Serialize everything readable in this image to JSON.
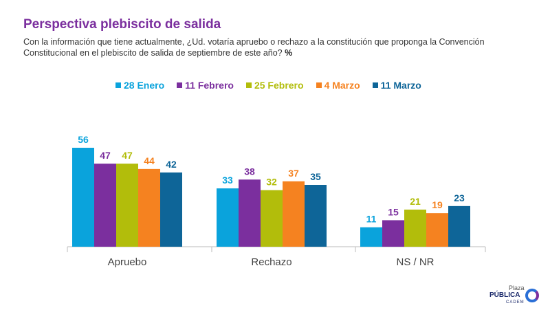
{
  "title": "Perspectiva plebiscito de salida",
  "subtitle": "Con la información que tiene actualmente, ¿Ud. votaría apruebo o rechazo a la constitución que proponga la Convención Constitucional en el plebiscito de salida de septiembre de este año?",
  "subtitle_unit": "%",
  "logo": {
    "line1": "Plaza",
    "line2": "PÚBLICA",
    "line3": "CADEM"
  },
  "chart_data": {
    "type": "bar",
    "title": "Perspectiva plebiscito de salida",
    "categories": [
      "Apruebo",
      "Rechazo",
      "NS / NR"
    ],
    "ylim": [
      0,
      60
    ],
    "grid": false,
    "legend_position": "top-center",
    "series": [
      {
        "name": "28 Enero",
        "color": "#0aa3dc",
        "values": [
          56,
          33,
          11
        ]
      },
      {
        "name": "11 Febrero",
        "color": "#7b2f9e",
        "values": [
          47,
          38,
          15
        ]
      },
      {
        "name": "25 Febrero",
        "color": "#b2bd0b",
        "values": [
          47,
          32,
          21
        ]
      },
      {
        "name": "4 Marzo",
        "color": "#f58220",
        "values": [
          44,
          37,
          19
        ]
      },
      {
        "name": "11 Marzo",
        "color": "#0e6598",
        "values": [
          42,
          35,
          23
        ]
      }
    ]
  }
}
